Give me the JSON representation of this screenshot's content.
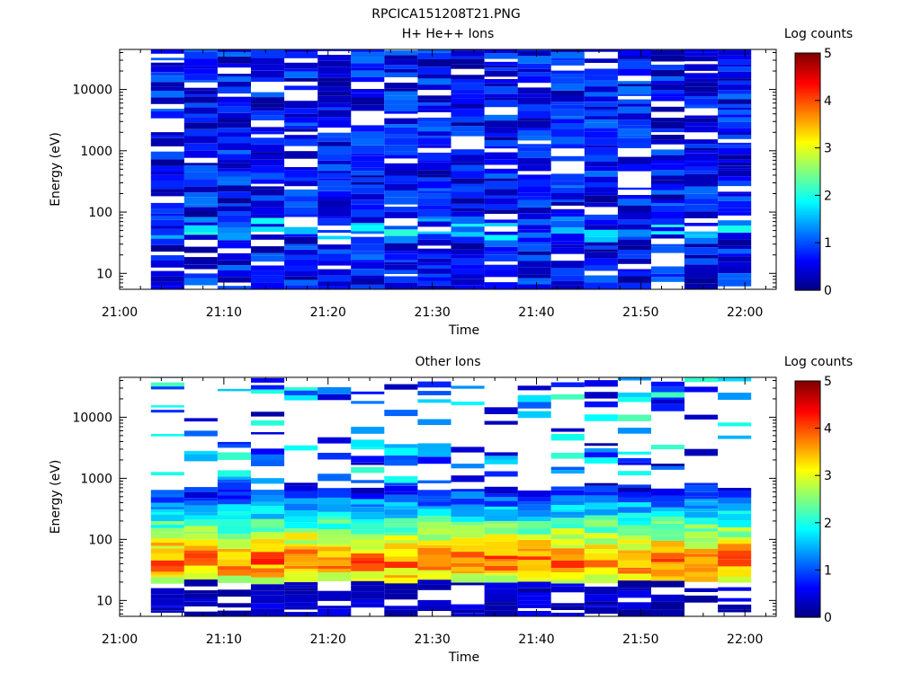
{
  "figure": {
    "title": "RPCICA151208T21.PNG"
  },
  "chart_data": [
    {
      "type": "heatmap",
      "title": "H+ He++ Ions",
      "xlabel": "Time",
      "ylabel": "Energy (eV)",
      "xlim": [
        "21:00",
        "22:03"
      ],
      "ylim": [
        5.5,
        45000
      ],
      "y_scale": "log",
      "x_ticks": [
        "21:00",
        "21:10",
        "21:20",
        "21:30",
        "21:40",
        "21:50",
        "22:00"
      ],
      "y_ticks": [
        "10",
        "100",
        "1000",
        "10000"
      ],
      "colorbar": {
        "label": "Log counts",
        "range": [
          0,
          5
        ],
        "ticks": [
          "0",
          "1",
          "2",
          "3",
          "4",
          "5"
        ],
        "colormap": "jet"
      },
      "time_bins_start_min": [
        3.0,
        6.2,
        9.4,
        12.6,
        15.8,
        19.0,
        22.2,
        25.4,
        28.6,
        31.8,
        35.0,
        38.2,
        41.4,
        44.6,
        47.8,
        51.0,
        54.2,
        57.4
      ],
      "energy_range_eV": [
        5.5,
        45000
      ],
      "profile": "low",
      "seed": 17
    },
    {
      "type": "heatmap",
      "title": "Other Ions",
      "xlabel": "Time",
      "ylabel": "Energy (eV)",
      "xlim": [
        "21:00",
        "22:03"
      ],
      "ylim": [
        5.5,
        45000
      ],
      "y_scale": "log",
      "x_ticks": [
        "21:00",
        "21:10",
        "21:20",
        "21:30",
        "21:40",
        "21:50",
        "22:00"
      ],
      "y_ticks": [
        "10",
        "100",
        "1000",
        "10000"
      ],
      "colorbar": {
        "label": "Log counts",
        "range": [
          0,
          5
        ],
        "ticks": [
          "0",
          "1",
          "2",
          "3",
          "4",
          "5"
        ],
        "colormap": "jet"
      },
      "time_bins_start_min": [
        3.0,
        6.2,
        9.4,
        12.6,
        15.8,
        19.0,
        22.2,
        25.4,
        28.6,
        31.8,
        35.0,
        38.2,
        41.4,
        44.6,
        47.8,
        51.0,
        54.2,
        57.4
      ],
      "energy_range_eV": [
        5.5,
        45000
      ],
      "profile": "peak",
      "peak_energy_eV": 45,
      "seed": 91
    }
  ]
}
